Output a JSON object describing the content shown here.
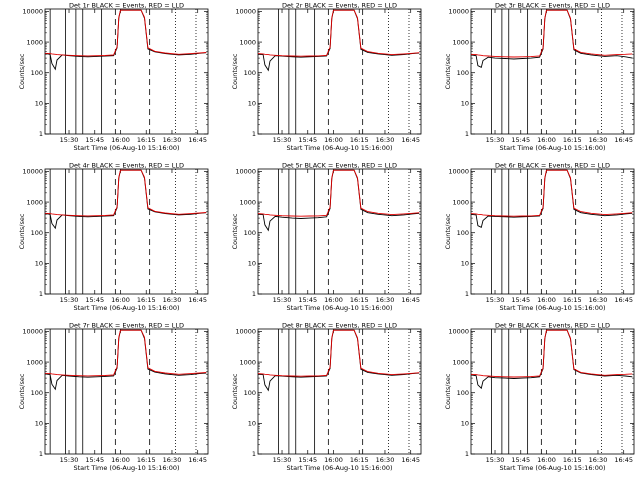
{
  "page": {
    "background": "#ffffff"
  },
  "style": {
    "events_color": "#000000",
    "lld_color": "#e00000",
    "axis_color": "#000000"
  },
  "common": {
    "ylabel": "Counts/sec",
    "xlabel": "Start Time (06-Aug-10 15:16:00)",
    "xticks": [
      "15:30",
      "15:45",
      "16:00",
      "16:15",
      "16:30",
      "16:45"
    ],
    "yticks": [
      "1",
      "10",
      "100",
      "1000",
      "10000"
    ]
  },
  "chart_data": [
    {
      "type": "line",
      "title": "Det 1r BLACK = Events, RED = LLD",
      "xlabel": "Start Time (06-Aug-10 15:16:00)",
      "ylabel": "Counts/sec",
      "x_unit": "minutes after 15:16:00",
      "xlim": [
        0,
        95
      ],
      "ylim": [
        1,
        12000
      ],
      "y_scale": "log",
      "x_ticks": [
        14,
        29,
        44,
        59,
        74,
        89
      ],
      "x": [
        0,
        3,
        4,
        6,
        7,
        10,
        14,
        20,
        25,
        30,
        35,
        40,
        42,
        43,
        44,
        46,
        48,
        52,
        56,
        58,
        60,
        64,
        70,
        78,
        85,
        90,
        94
      ],
      "series": [
        {
          "name": "Events",
          "values": [
            420,
            400,
            200,
            130,
            260,
            380,
            360,
            340,
            330,
            340,
            350,
            360,
            650,
            6000,
            11000,
            11000,
            11000,
            11000,
            11000,
            6000,
            600,
            480,
            420,
            380,
            400,
            430,
            450
          ]
        },
        {
          "name": "LLD",
          "values": [
            430,
            420,
            410,
            400,
            390,
            380,
            370,
            360,
            355,
            360,
            365,
            380,
            700,
            6500,
            11000,
            11000,
            11000,
            11000,
            11000,
            6500,
            650,
            500,
            440,
            400,
            420,
            440,
            460
          ]
        }
      ],
      "vlines_solid": [
        3,
        12,
        18,
        22,
        33
      ],
      "vlines_dashed": [
        41,
        61
      ],
      "vlines_dotted": [
        76,
        88
      ]
    },
    {
      "type": "line",
      "title": "Det 2r BLACK = Events, RED = LLD",
      "xlabel": "Start Time (06-Aug-10 15:16:00)",
      "ylabel": "Counts/sec",
      "x_unit": "minutes after 15:16:00",
      "xlim": [
        0,
        95
      ],
      "ylim": [
        1,
        12000
      ],
      "y_scale": "log",
      "x_ticks": [
        14,
        29,
        44,
        59,
        74,
        89
      ],
      "x": [
        0,
        3,
        4,
        6,
        7,
        10,
        14,
        20,
        25,
        30,
        35,
        40,
        42,
        43,
        44,
        46,
        48,
        52,
        56,
        58,
        60,
        64,
        70,
        78,
        85,
        90,
        94
      ],
      "series": [
        {
          "name": "Events",
          "values": [
            400,
            390,
            180,
            120,
            240,
            360,
            350,
            330,
            320,
            330,
            340,
            350,
            620,
            5800,
            11000,
            11000,
            11000,
            11000,
            11000,
            5800,
            580,
            460,
            410,
            370,
            390,
            420,
            440
          ]
        },
        {
          "name": "LLD",
          "values": [
            420,
            410,
            400,
            390,
            380,
            370,
            360,
            350,
            345,
            350,
            355,
            370,
            680,
            6200,
            11000,
            11000,
            11000,
            11000,
            11000,
            6200,
            630,
            490,
            430,
            390,
            410,
            430,
            450
          ]
        }
      ],
      "vlines_solid": [
        12,
        18,
        22,
        33
      ],
      "vlines_dashed": [
        41,
        61
      ],
      "vlines_dotted": [
        76,
        88
      ]
    },
    {
      "type": "line",
      "title": "Det 3r BLACK = Events, RED = LLD",
      "xlabel": "Start Time (06-Aug-10 15:16:00)",
      "ylabel": "Counts/sec",
      "x_unit": "minutes after 15:16:00",
      "xlim": [
        0,
        95
      ],
      "ylim": [
        1,
        12000
      ],
      "y_scale": "log",
      "x_ticks": [
        14,
        29,
        44,
        59,
        74,
        89
      ],
      "x": [
        0,
        3,
        4,
        6,
        7,
        10,
        14,
        20,
        25,
        30,
        35,
        40,
        42,
        43,
        44,
        46,
        48,
        52,
        56,
        58,
        60,
        64,
        70,
        78,
        85,
        90,
        94
      ],
      "series": [
        {
          "name": "Events",
          "values": [
            380,
            360,
            170,
            150,
            250,
            320,
            300,
            290,
            280,
            290,
            300,
            320,
            600,
            5600,
            11000,
            11000,
            11000,
            11000,
            11000,
            5600,
            560,
            430,
            380,
            340,
            360,
            330,
            300
          ]
        },
        {
          "name": "LLD",
          "values": [
            400,
            390,
            380,
            370,
            360,
            350,
            340,
            330,
            325,
            330,
            335,
            350,
            650,
            6000,
            11000,
            11000,
            11000,
            11000,
            11000,
            6000,
            600,
            460,
            410,
            370,
            390,
            400,
            410
          ]
        }
      ],
      "vlines_solid": [
        12,
        18,
        22,
        33
      ],
      "vlines_dashed": [
        41,
        61
      ],
      "vlines_dotted": [
        76,
        88
      ]
    },
    {
      "type": "line",
      "title": "Det 4r BLACK = Events, RED = LLD",
      "xlabel": "Start Time (06-Aug-10 15:16:00)",
      "ylabel": "Counts/sec",
      "x_unit": "minutes after 15:16:00",
      "xlim": [
        0,
        95
      ],
      "ylim": [
        1,
        12000
      ],
      "y_scale": "log",
      "x_ticks": [
        14,
        29,
        44,
        59,
        74,
        89
      ],
      "x": [
        0,
        3,
        4,
        6,
        7,
        10,
        14,
        20,
        25,
        30,
        35,
        40,
        42,
        43,
        44,
        46,
        48,
        52,
        56,
        58,
        60,
        64,
        70,
        78,
        85,
        90,
        94
      ],
      "series": [
        {
          "name": "Events",
          "values": [
            420,
            400,
            200,
            140,
            260,
            380,
            360,
            340,
            330,
            340,
            350,
            360,
            650,
            6000,
            11000,
            11000,
            11000,
            11000,
            11000,
            6000,
            600,
            480,
            420,
            380,
            400,
            430,
            450
          ]
        },
        {
          "name": "LLD",
          "values": [
            430,
            420,
            410,
            400,
            390,
            380,
            370,
            360,
            355,
            360,
            365,
            380,
            700,
            6500,
            11000,
            11000,
            11000,
            11000,
            11000,
            6500,
            650,
            500,
            440,
            400,
            420,
            440,
            460
          ]
        }
      ],
      "vlines_solid": [
        3,
        12,
        18,
        22,
        33
      ],
      "vlines_dashed": [
        41,
        61
      ],
      "vlines_dotted": [
        76,
        88
      ]
    },
    {
      "type": "line",
      "title": "Det 5r BLACK = Events, RED = LLD",
      "xlabel": "Start Time (06-Aug-10 15:16:00)",
      "ylabel": "Counts/sec",
      "x_unit": "minutes after 15:16:00",
      "xlim": [
        0,
        95
      ],
      "ylim": [
        1,
        12000
      ],
      "y_scale": "log",
      "x_ticks": [
        14,
        29,
        44,
        59,
        74,
        89
      ],
      "x": [
        0,
        3,
        4,
        6,
        7,
        10,
        14,
        20,
        25,
        30,
        35,
        40,
        42,
        43,
        44,
        46,
        48,
        52,
        56,
        58,
        60,
        64,
        70,
        78,
        85,
        90,
        94
      ],
      "series": [
        {
          "name": "Events",
          "values": [
            400,
            390,
            180,
            120,
            240,
            340,
            320,
            300,
            290,
            300,
            310,
            330,
            620,
            5800,
            11000,
            11000,
            11000,
            11000,
            11000,
            5800,
            580,
            450,
            400,
            360,
            380,
            410,
            430
          ]
        },
        {
          "name": "LLD",
          "values": [
            420,
            410,
            400,
            390,
            380,
            370,
            360,
            350,
            345,
            350,
            355,
            370,
            680,
            6200,
            11000,
            11000,
            11000,
            11000,
            11000,
            6200,
            630,
            490,
            430,
            390,
            410,
            430,
            450
          ]
        }
      ],
      "vlines_solid": [
        12,
        18,
        22,
        33
      ],
      "vlines_dashed": [
        41,
        61
      ],
      "vlines_dotted": [
        76,
        88
      ]
    },
    {
      "type": "line",
      "title": "Det 6r BLACK = Events, RED = LLD",
      "xlabel": "Start Time (06-Aug-10 15:16:00)",
      "ylabel": "Counts/sec",
      "x_unit": "minutes after 15:16:00",
      "xlim": [
        0,
        95
      ],
      "ylim": [
        1,
        12000
      ],
      "y_scale": "log",
      "x_ticks": [
        14,
        29,
        44,
        59,
        74,
        89
      ],
      "x": [
        0,
        3,
        4,
        6,
        7,
        10,
        14,
        20,
        25,
        30,
        35,
        40,
        42,
        43,
        44,
        46,
        48,
        52,
        56,
        58,
        60,
        64,
        70,
        78,
        85,
        90,
        94
      ],
      "series": [
        {
          "name": "Events",
          "values": [
            400,
            380,
            170,
            150,
            250,
            350,
            340,
            330,
            320,
            330,
            340,
            350,
            620,
            5800,
            11000,
            11000,
            11000,
            11000,
            11000,
            5800,
            580,
            450,
            400,
            360,
            380,
            410,
            430
          ]
        },
        {
          "name": "LLD",
          "values": [
            420,
            410,
            400,
            390,
            380,
            370,
            360,
            350,
            345,
            350,
            355,
            370,
            680,
            6200,
            11000,
            11000,
            11000,
            11000,
            11000,
            6200,
            630,
            490,
            430,
            390,
            410,
            430,
            450
          ]
        }
      ],
      "vlines_solid": [
        12,
        18,
        22,
        33
      ],
      "vlines_dashed": [
        41,
        61
      ],
      "vlines_dotted": [
        76,
        88
      ]
    },
    {
      "type": "line",
      "title": "Det 7r BLACK = Events, RED = LLD",
      "xlabel": "Start Time (06-Aug-10 15:16:00)",
      "ylabel": "Counts/sec",
      "x_unit": "minutes after 15:16:00",
      "xlim": [
        0,
        95
      ],
      "ylim": [
        1,
        12000
      ],
      "y_scale": "log",
      "x_ticks": [
        14,
        29,
        44,
        59,
        74,
        89
      ],
      "x": [
        0,
        3,
        4,
        6,
        7,
        10,
        14,
        20,
        25,
        30,
        35,
        40,
        42,
        43,
        44,
        46,
        48,
        52,
        56,
        58,
        60,
        64,
        70,
        78,
        85,
        90,
        94
      ],
      "series": [
        {
          "name": "Events",
          "values": [
            410,
            390,
            190,
            130,
            250,
            370,
            350,
            330,
            320,
            330,
            340,
            350,
            640,
            5900,
            11000,
            11000,
            11000,
            11000,
            11000,
            5900,
            590,
            470,
            410,
            370,
            390,
            420,
            440
          ]
        },
        {
          "name": "LLD",
          "values": [
            430,
            420,
            410,
            400,
            390,
            380,
            370,
            360,
            355,
            360,
            365,
            380,
            700,
            6500,
            11000,
            11000,
            11000,
            11000,
            11000,
            6500,
            650,
            500,
            440,
            400,
            420,
            440,
            460
          ]
        }
      ],
      "vlines_solid": [
        3,
        12,
        18,
        22,
        33
      ],
      "vlines_dashed": [
        41,
        61
      ],
      "vlines_dotted": [
        76,
        88
      ]
    },
    {
      "type": "line",
      "title": "Det 8r BLACK = Events, RED = LLD",
      "xlabel": "Start Time (06-Aug-10 15:16:00)",
      "ylabel": "Counts/sec",
      "x_unit": "minutes after 15:16:00",
      "xlim": [
        0,
        95
      ],
      "ylim": [
        1,
        12000
      ],
      "y_scale": "log",
      "x_ticks": [
        14,
        29,
        44,
        59,
        74,
        89
      ],
      "x": [
        0,
        3,
        4,
        6,
        7,
        10,
        14,
        20,
        25,
        30,
        35,
        40,
        42,
        43,
        44,
        46,
        48,
        52,
        56,
        58,
        60,
        64,
        70,
        78,
        85,
        90,
        94
      ],
      "series": [
        {
          "name": "Events",
          "values": [
            400,
            390,
            180,
            120,
            240,
            360,
            350,
            330,
            320,
            330,
            340,
            350,
            620,
            5800,
            11000,
            11000,
            11000,
            11000,
            11000,
            5800,
            580,
            460,
            410,
            370,
            390,
            420,
            440
          ]
        },
        {
          "name": "LLD",
          "values": [
            420,
            410,
            400,
            390,
            380,
            370,
            360,
            350,
            345,
            350,
            355,
            370,
            680,
            6200,
            11000,
            11000,
            11000,
            11000,
            11000,
            6200,
            630,
            490,
            430,
            390,
            410,
            430,
            450
          ]
        }
      ],
      "vlines_solid": [
        12,
        18,
        22,
        33
      ],
      "vlines_dashed": [
        41,
        61
      ],
      "vlines_dotted": [
        76,
        88
      ]
    },
    {
      "type": "line",
      "title": "Det 9r BLACK = Events, RED = LLD",
      "xlabel": "Start Time (06-Aug-10 15:16:00)",
      "ylabel": "Counts/sec",
      "x_unit": "minutes after 15:16:00",
      "xlim": [
        0,
        95
      ],
      "ylim": [
        1,
        12000
      ],
      "y_scale": "log",
      "x_ticks": [
        14,
        29,
        44,
        59,
        74,
        89
      ],
      "x": [
        0,
        3,
        4,
        6,
        7,
        10,
        14,
        20,
        25,
        30,
        35,
        40,
        42,
        43,
        44,
        46,
        48,
        52,
        56,
        58,
        60,
        64,
        70,
        78,
        85,
        90,
        94
      ],
      "series": [
        {
          "name": "Events",
          "values": [
            380,
            360,
            180,
            140,
            240,
            330,
            310,
            300,
            290,
            300,
            310,
            330,
            610,
            5700,
            11000,
            11000,
            11000,
            11000,
            11000,
            5700,
            570,
            440,
            390,
            350,
            370,
            350,
            330
          ]
        },
        {
          "name": "LLD",
          "values": [
            400,
            390,
            380,
            370,
            360,
            350,
            340,
            330,
            325,
            330,
            335,
            350,
            650,
            6000,
            11000,
            11000,
            11000,
            11000,
            11000,
            6000,
            600,
            460,
            410,
            370,
            390,
            400,
            410
          ]
        }
      ],
      "vlines_solid": [
        12,
        18,
        22,
        33
      ],
      "vlines_dashed": [
        41,
        61
      ],
      "vlines_dotted": [
        76,
        88
      ]
    }
  ]
}
